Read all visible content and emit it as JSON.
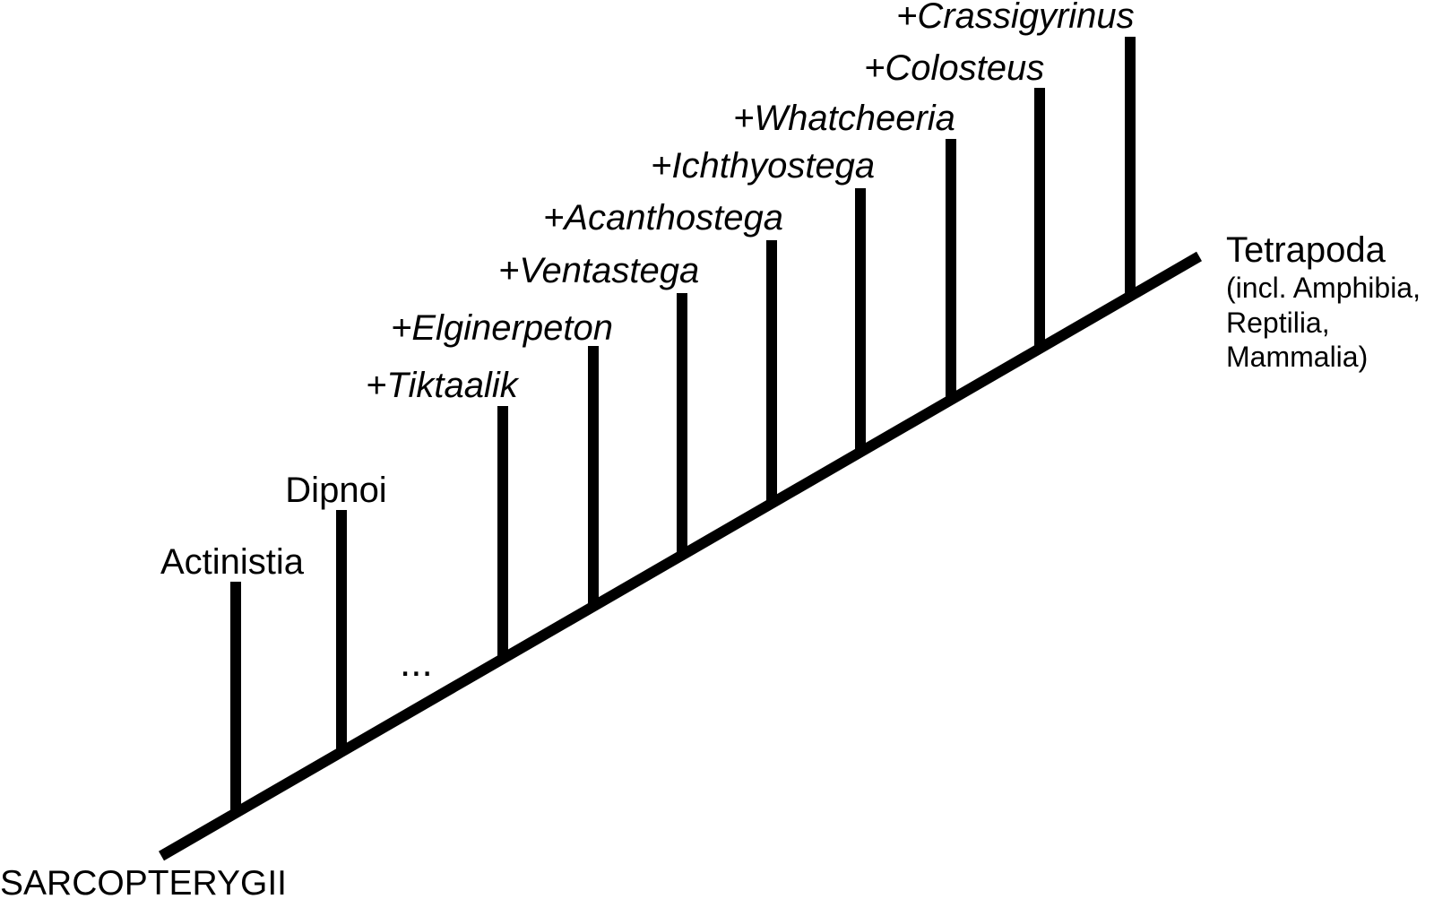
{
  "diagram": {
    "root_label": "SARCOPTERYGII",
    "ellipsis": "...",
    "colors": {
      "line": "#000000",
      "text": "#000000",
      "background": "#ffffff"
    },
    "branches": [
      {
        "name": "Actinistia",
        "extinct": false
      },
      {
        "name": "Dipnoi",
        "extinct": false
      },
      {
        "name": "+Tiktaalik",
        "extinct": true
      },
      {
        "name": "+Elginerpeton",
        "extinct": true
      },
      {
        "name": "+Ventastega",
        "extinct": true
      },
      {
        "name": "+Acanthostega",
        "extinct": true
      },
      {
        "name": "+Ichthyostega",
        "extinct": true
      },
      {
        "name": "+Whatcheeria",
        "extinct": true
      },
      {
        "name": "+Colosteus",
        "extinct": true
      },
      {
        "name": "+Crassigyrinus",
        "extinct": true
      }
    ],
    "terminal": {
      "name": "Tetrapoda",
      "note_lines": [
        "(incl. Amphibia,",
        "Reptilia,",
        "Mammalia)"
      ]
    }
  }
}
